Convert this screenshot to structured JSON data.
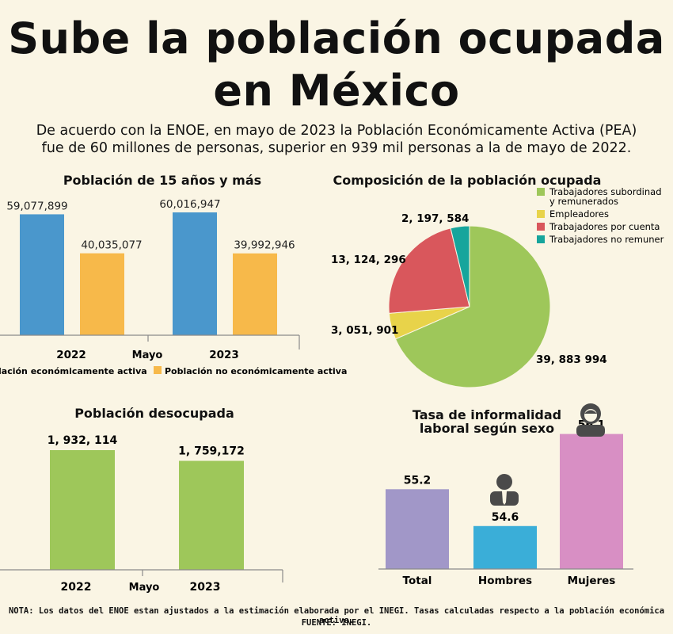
{
  "header": {
    "title_line1": "Sube la población ocupada",
    "title_line2": "en México",
    "subtitle_line1": "De acuerdo con la ENOE, en mayo de 2023 la Población Económicamente Activa (PEA)",
    "subtitle_line2": "fue de 60 millones de personas, superior en 939 mil personas a la de mayo de 2022."
  },
  "colors": {
    "blue": "#4a97cc",
    "orange": "#f7b94a",
    "green": "#9ec75a",
    "yellow": "#e8d34a",
    "red": "#d9575c",
    "teal": "#16a59c",
    "purple": "#a197c8",
    "cyan": "#3aaed8",
    "pink": "#d88fc4"
  },
  "chart_data": [
    {
      "type": "bar",
      "title": "Población de 15 años y más",
      "categories": [
        "2022",
        "2023"
      ],
      "xlabel": "Mayo",
      "series": [
        {
          "name": "Población económicamente activa",
          "values": [
            59077899,
            60016947
          ],
          "labels": [
            "59,077,899",
            "60,016,947"
          ],
          "color": "#4a97cc"
        },
        {
          "name": "Población no económicamente activa",
          "values": [
            40035077,
            39992946
          ],
          "labels": [
            "40,035,077",
            "39,992,946"
          ],
          "color": "#f7b94a"
        }
      ],
      "legend_visible_text": [
        "lación económicamente activa",
        "Población no económicamente activa"
      ],
      "ylim": [
        0,
        65000000
      ],
      "legend": "bottom"
    },
    {
      "type": "pie",
      "title": "Composición de la población ocupada",
      "slices": [
        {
          "name": "Trabajadores subordinados y remunerados",
          "legend_lines": [
            "Trabajadores subordinad",
            "y remunerados"
          ],
          "value": 39883994,
          "label": "39, 883 994",
          "color": "#9ec75a"
        },
        {
          "name": "Empleadores",
          "legend_lines": [
            "Empleadores"
          ],
          "value": 3051901,
          "label": "3, 051, 901",
          "color": "#e8d34a"
        },
        {
          "name": "Trabajadores por cuenta",
          "legend_lines": [
            "Trabajadores por cuenta"
          ],
          "value": 13124296,
          "label": "13, 124, 296",
          "color": "#d9575c"
        },
        {
          "name": "Trabajadores no remuner",
          "legend_lines": [
            "Trabajadores no remuner"
          ],
          "value": 2197584,
          "label": "2, 197, 584",
          "color": "#16a59c"
        }
      ],
      "legend": "top-right"
    },
    {
      "type": "bar",
      "title": "Población desocupada",
      "categories": [
        "2022",
        "2023"
      ],
      "xlabel": "Mayo",
      "values": [
        1932114,
        1759172
      ],
      "labels": [
        "1, 932, 114",
        "1, 759,172"
      ],
      "color": "#9ec75a",
      "ylim": [
        0,
        2300000
      ]
    },
    {
      "type": "bar",
      "title_lines": [
        "Tasa de informalidad",
        "laboral según sexo"
      ],
      "categories": [
        "Total",
        "Hombres",
        "Mujeres"
      ],
      "values": [
        55.2,
        54.6,
        56.1
      ],
      "labels": [
        "55.2",
        "54.6",
        "56.1"
      ],
      "colors": [
        "#a197c8",
        "#3aaed8",
        "#d88fc4"
      ],
      "ylim": [
        53.9,
        56.65
      ],
      "icons": [
        "man-icon",
        "woman-icon"
      ]
    }
  ],
  "footer": {
    "note": "NOTA: Los datos del ENOE estan ajustados a la estimación elaborada por el INEGI. Tasas calculadas respecto a la población económica activa.",
    "source": "FUENTE: INEGI."
  }
}
